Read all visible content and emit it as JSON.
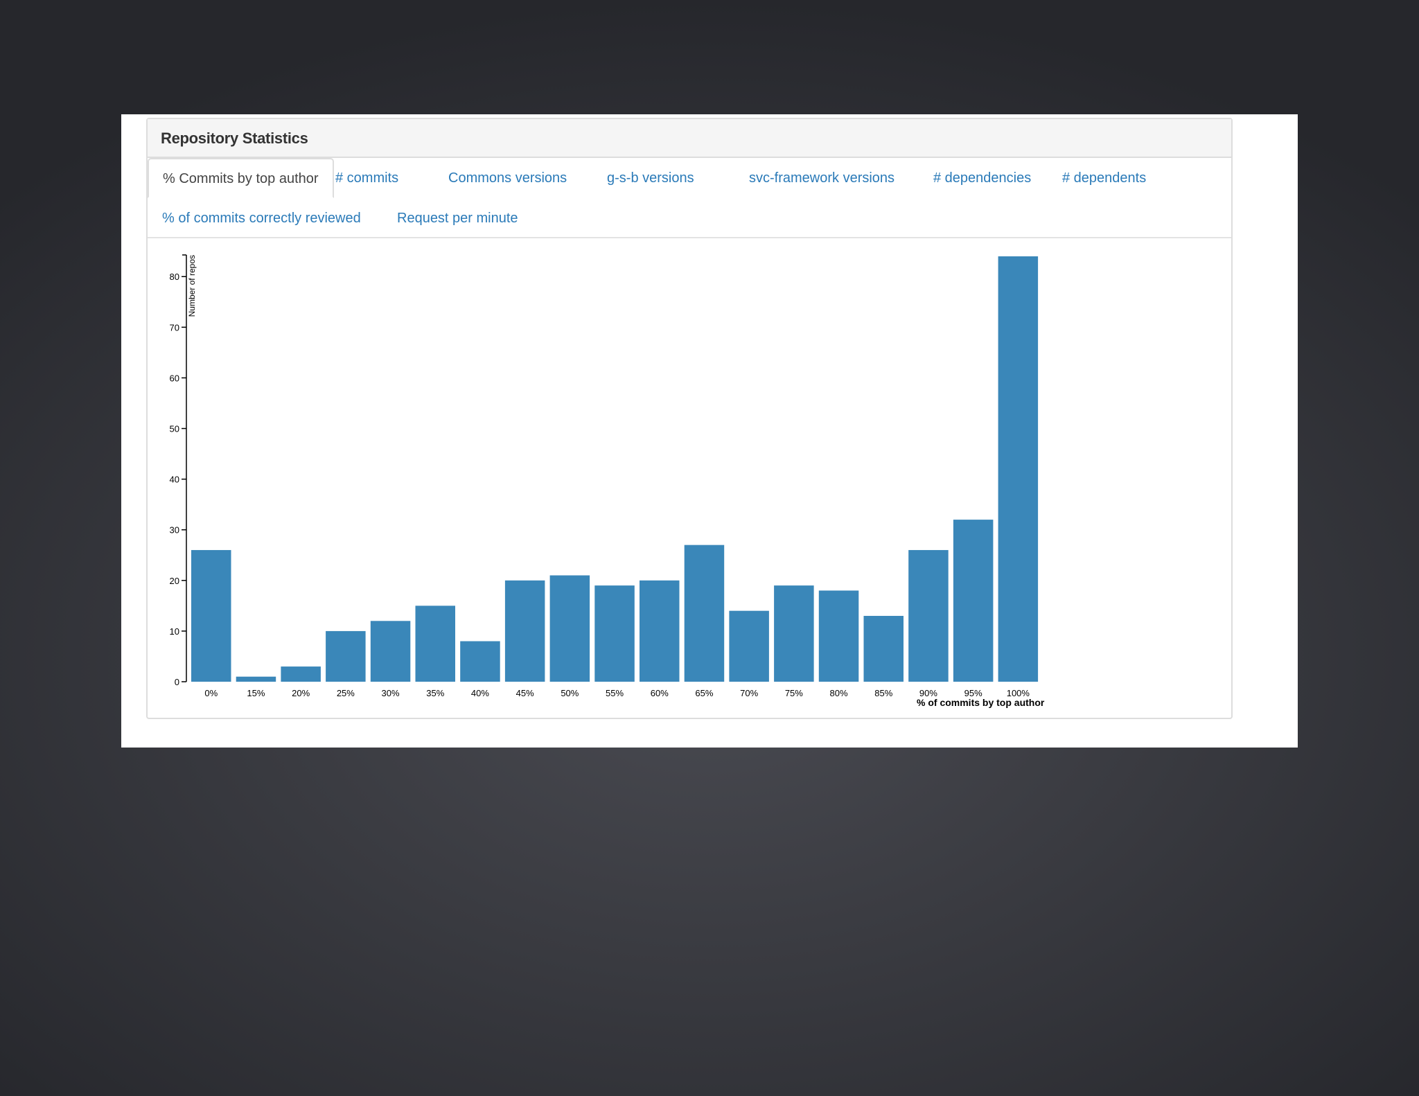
{
  "panel": {
    "title": "Repository Statistics"
  },
  "tabs": [
    {
      "label": "% Commits by top author",
      "active": true
    },
    {
      "label": "# commits",
      "active": false
    },
    {
      "label": "Commons versions",
      "active": false
    },
    {
      "label": "g-s-b versions",
      "active": false
    },
    {
      "label": "svc-framework versions",
      "active": false
    },
    {
      "label": "# dependencies",
      "active": false
    },
    {
      "label": "# dependents",
      "active": false
    },
    {
      "label": "% of commits correctly reviewed",
      "active": false
    },
    {
      "label": "Request per minute",
      "active": false
    }
  ],
  "colors": {
    "bar": "#3a87b9",
    "link": "#2a7ab8",
    "active_tab_text": "#444444"
  },
  "chart_data": {
    "type": "bar",
    "categories": [
      "0%",
      "15%",
      "20%",
      "25%",
      "30%",
      "35%",
      "40%",
      "45%",
      "50%",
      "55%",
      "60%",
      "65%",
      "70%",
      "75%",
      "80%",
      "85%",
      "90%",
      "95%",
      "100%"
    ],
    "values": [
      26,
      1,
      3,
      10,
      12,
      15,
      8,
      20,
      21,
      19,
      20,
      27,
      14,
      19,
      18,
      13,
      26,
      32,
      84
    ],
    "xlabel": "% of commits by top author",
    "ylabel": "Number of repos",
    "ylim": [
      0,
      84
    ],
    "yticks": [
      0,
      10,
      20,
      30,
      40,
      50,
      60,
      70,
      80
    ],
    "grid": false,
    "legend": "none"
  }
}
